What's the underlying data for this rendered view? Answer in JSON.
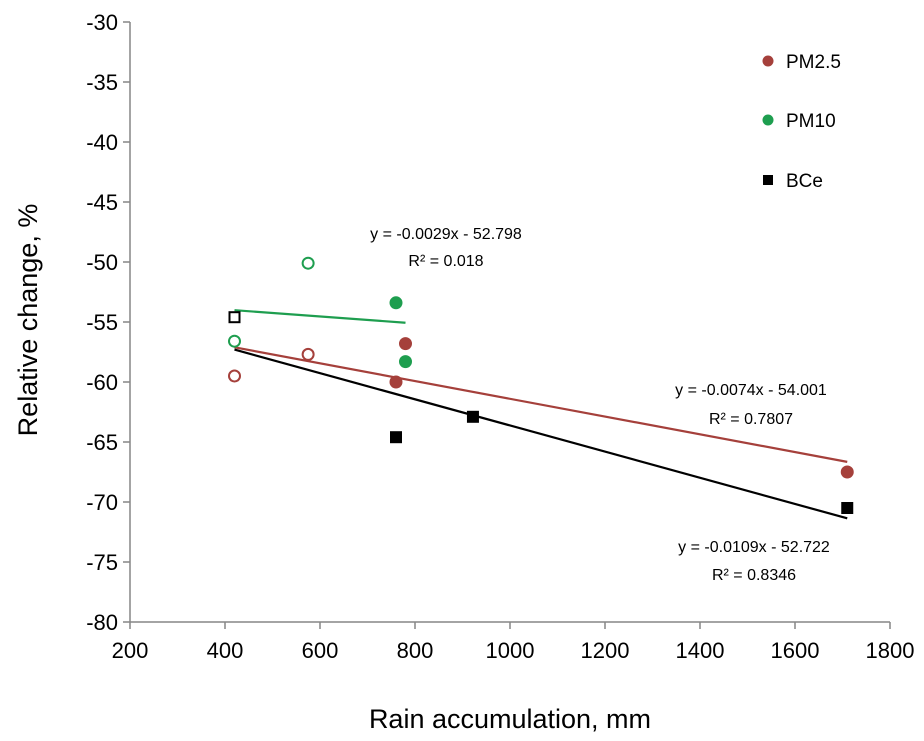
{
  "chart_data": {
    "type": "scatter",
    "title": "",
    "xlabel": "Rain accumulation, mm",
    "ylabel": "Relative change, %",
    "xlim": [
      200,
      1800
    ],
    "ylim": [
      -80,
      -30
    ],
    "x_ticks": [
      200,
      400,
      600,
      800,
      1000,
      1200,
      1400,
      1600,
      1800
    ],
    "y_ticks": [
      -30,
      -35,
      -40,
      -45,
      -50,
      -55,
      -60,
      -65,
      -70,
      -75,
      -80
    ],
    "grid": false,
    "legend_position": "top-right",
    "series": [
      {
        "name": "PM2.5",
        "color": "#a5403b",
        "marker": "circle",
        "points": [
          {
            "x": 420,
            "y": -59.5,
            "filled": false
          },
          {
            "x": 575,
            "y": -57.7,
            "filled": false
          },
          {
            "x": 760,
            "y": -60.0,
            "filled": true
          },
          {
            "x": 780,
            "y": -56.8,
            "filled": true
          },
          {
            "x": 1710,
            "y": -67.5,
            "filled": true
          }
        ],
        "trendline": {
          "x": [
            420,
            1710
          ],
          "equation": "y = -0.0074x - 54.001",
          "r2": "R² = 0.7807"
        }
      },
      {
        "name": "PM10",
        "color": "#1e9e4f",
        "marker": "circle",
        "points": [
          {
            "x": 420,
            "y": -56.6,
            "filled": false
          },
          {
            "x": 575,
            "y": -50.1,
            "filled": false
          },
          {
            "x": 760,
            "y": -53.4,
            "filled": true
          },
          {
            "x": 780,
            "y": -58.3,
            "filled": true
          }
        ],
        "trendline": {
          "x": [
            420,
            780
          ],
          "equation": "y = -0.0029x - 52.798",
          "r2": "R² = 0.018"
        }
      },
      {
        "name": "BCe",
        "color": "#000000",
        "marker": "square",
        "points": [
          {
            "x": 420,
            "y": -54.6,
            "filled": false
          },
          {
            "x": 760,
            "y": -64.6,
            "filled": true
          },
          {
            "x": 922,
            "y": -62.9,
            "filled": true
          },
          {
            "x": 1710,
            "y": -70.5,
            "filled": true
          }
        ],
        "trendline": {
          "x": [
            420,
            1710
          ],
          "equation": "y = -0.0109x - 52.722",
          "r2": "R² = 0.8346"
        }
      }
    ]
  }
}
